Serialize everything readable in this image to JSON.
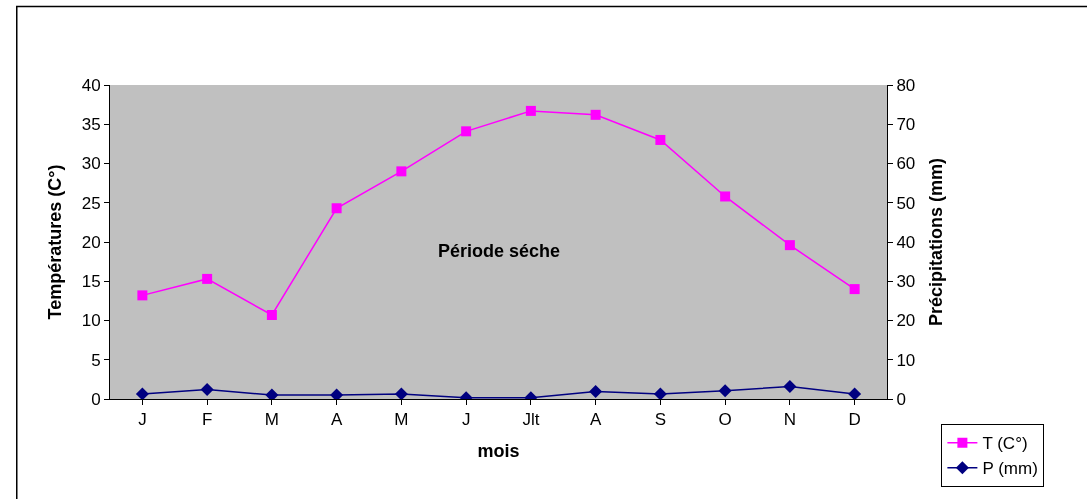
{
  "chart_data": {
    "type": "line",
    "xlabel": "mois",
    "ylabel": "Températures (C°)",
    "y2label": "Précipitations (mm)",
    "categories": [
      "J",
      "F",
      "M",
      "A",
      "M",
      "J",
      "Jlt",
      "A",
      "S",
      "O",
      "N",
      "D"
    ],
    "series": [
      {
        "name": "T (C°)",
        "color": "#ff00ff",
        "marker": "square",
        "values": [
          13.2,
          15.3,
          10.7,
          24.3,
          29.0,
          34.1,
          36.7,
          36.2,
          33.0,
          25.8,
          19.6,
          14.0
        ]
      },
      {
        "name": "P (mm)",
        "color": "#000080",
        "marker": "diamond",
        "axis": "y2",
        "values": [
          1.3,
          2.4,
          1.0,
          1.0,
          1.3,
          0.3,
          0.3,
          1.9,
          1.3,
          2.1,
          3.2,
          1.3
        ]
      }
    ],
    "ylim": [
      0,
      40
    ],
    "yticks": [
      0,
      5,
      10,
      15,
      20,
      25,
      30,
      35,
      40
    ],
    "y2lim": [
      0,
      80
    ],
    "y2ticks": [
      0,
      10,
      20,
      30,
      40,
      50,
      60,
      70,
      80
    ],
    "annotations": [
      "Période séche"
    ],
    "grid": false,
    "legend": "bottom right"
  }
}
